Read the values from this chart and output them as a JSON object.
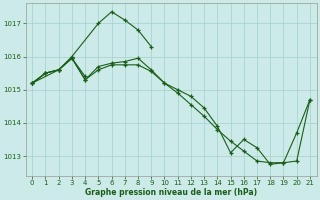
{
  "title": "Graphe pression niveau de la mer (hPa)",
  "xticks": [
    0,
    1,
    2,
    3,
    4,
    5,
    6,
    7,
    8,
    9,
    10,
    11,
    12,
    13,
    14,
    15,
    16,
    17,
    18,
    19,
    20,
    21
  ],
  "ylim": [
    1012.4,
    1017.6
  ],
  "yticks": [
    1013,
    1014,
    1015,
    1016,
    1017
  ],
  "background_color": "#cceae8",
  "grid_color": "#aad4d0",
  "line_color": "#1a5e1a",
  "series": [
    [
      1015.2,
      null,
      1015.6,
      1016.0,
      null,
      1017.0,
      1017.35,
      1017.1,
      1016.8,
      1016.3,
      null,
      null,
      null,
      null,
      null,
      null,
      null,
      null,
      null,
      null,
      null,
      null
    ],
    [
      1015.2,
      1015.5,
      1015.6,
      1015.95,
      1015.4,
      null,
      null,
      null,
      null,
      null,
      null,
      null,
      null,
      null,
      null,
      null,
      null,
      null,
      null,
      null,
      null,
      null
    ],
    [
      1015.2,
      1015.5,
      1015.6,
      1015.95,
      1015.3,
      1015.7,
      1015.8,
      1015.85,
      1015.95,
      1015.6,
      1015.2,
      1015.0,
      1014.8,
      1014.45,
      1013.9,
      1013.1,
      1013.5,
      1013.25,
      1012.75,
      1012.8,
      1013.7,
      1014.7
    ],
    [
      1015.2,
      1015.5,
      1015.6,
      1015.95,
      1015.3,
      1015.6,
      1015.75,
      1015.75,
      1015.75,
      1015.55,
      1015.2,
      1014.9,
      1014.55,
      1014.2,
      1013.8,
      1013.45,
      1013.15,
      1012.85,
      1012.8,
      1012.8,
      1012.85,
      1014.7
    ]
  ]
}
